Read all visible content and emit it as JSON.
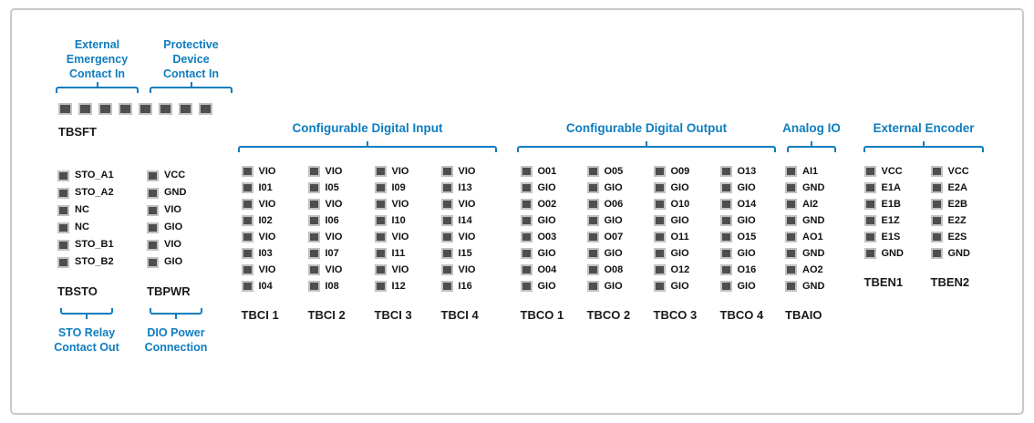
{
  "colors": {
    "accent": "#0f7dbf",
    "pin_fill": "#4e4e4e",
    "pin_border": "#c2c2c2"
  },
  "left": {
    "tbsft": {
      "name": "TBSFT",
      "pin_count": 8,
      "annotations": [
        {
          "label": "External\nEmergency\nContact In"
        },
        {
          "label": "Protective\nDevice\nContact In"
        }
      ]
    },
    "tbsto": {
      "name": "TBSTO",
      "pins": [
        "STO_A1",
        "STO_A2",
        "NC",
        "NC",
        "STO_B1",
        "STO_B2"
      ],
      "annotation": "STO Relay\nContact Out"
    },
    "tbpwr": {
      "name": "TBPWR",
      "pins": [
        "VCC",
        "GND",
        "VIO",
        "GIO",
        "VIO",
        "GIO"
      ],
      "annotation": "DIO Power\nConnection"
    }
  },
  "groups": [
    {
      "title": "Configurable Digital Input",
      "blocks": [
        {
          "name": "TBCI 1",
          "pins": [
            "VIO",
            "I01",
            "VIO",
            "I02",
            "VIO",
            "I03",
            "VIO",
            "I04"
          ]
        },
        {
          "name": "TBCI 2",
          "pins": [
            "VIO",
            "I05",
            "VIO",
            "I06",
            "VIO",
            "I07",
            "VIO",
            "I08"
          ]
        },
        {
          "name": "TBCI 3",
          "pins": [
            "VIO",
            "I09",
            "VIO",
            "I10",
            "VIO",
            "I11",
            "VIO",
            "I12"
          ]
        },
        {
          "name": "TBCI 4",
          "pins": [
            "VIO",
            "I13",
            "VIO",
            "I14",
            "VIO",
            "I15",
            "VIO",
            "I16"
          ]
        }
      ]
    },
    {
      "title": "Configurable Digital Output",
      "blocks": [
        {
          "name": "TBCO 1",
          "pins": [
            "O01",
            "GIO",
            "O02",
            "GIO",
            "O03",
            "GIO",
            "O04",
            "GIO"
          ]
        },
        {
          "name": "TBCO 2",
          "pins": [
            "O05",
            "GIO",
            "O06",
            "GIO",
            "O07",
            "GIO",
            "O08",
            "GIO"
          ]
        },
        {
          "name": "TBCO 3",
          "pins": [
            "O09",
            "GIO",
            "O10",
            "GIO",
            "O11",
            "GIO",
            "O12",
            "GIO"
          ]
        },
        {
          "name": "TBCO 4",
          "pins": [
            "O13",
            "GIO",
            "O14",
            "GIO",
            "O15",
            "GIO",
            "O16",
            "GIO"
          ]
        }
      ]
    },
    {
      "title": "Analog IO",
      "blocks": [
        {
          "name": "TBAIO",
          "pins": [
            "AI1",
            "GND",
            "AI2",
            "GND",
            "AO1",
            "GND",
            "AO2",
            "GND"
          ]
        }
      ]
    },
    {
      "title": "External Encoder",
      "blocks": [
        {
          "name": "TBEN1",
          "pins": [
            "VCC",
            "E1A",
            "E1B",
            "E1Z",
            "E1S",
            "GND"
          ]
        },
        {
          "name": "TBEN2",
          "pins": [
            "VCC",
            "E2A",
            "E2B",
            "E2Z",
            "E2S",
            "GND"
          ]
        }
      ]
    }
  ]
}
